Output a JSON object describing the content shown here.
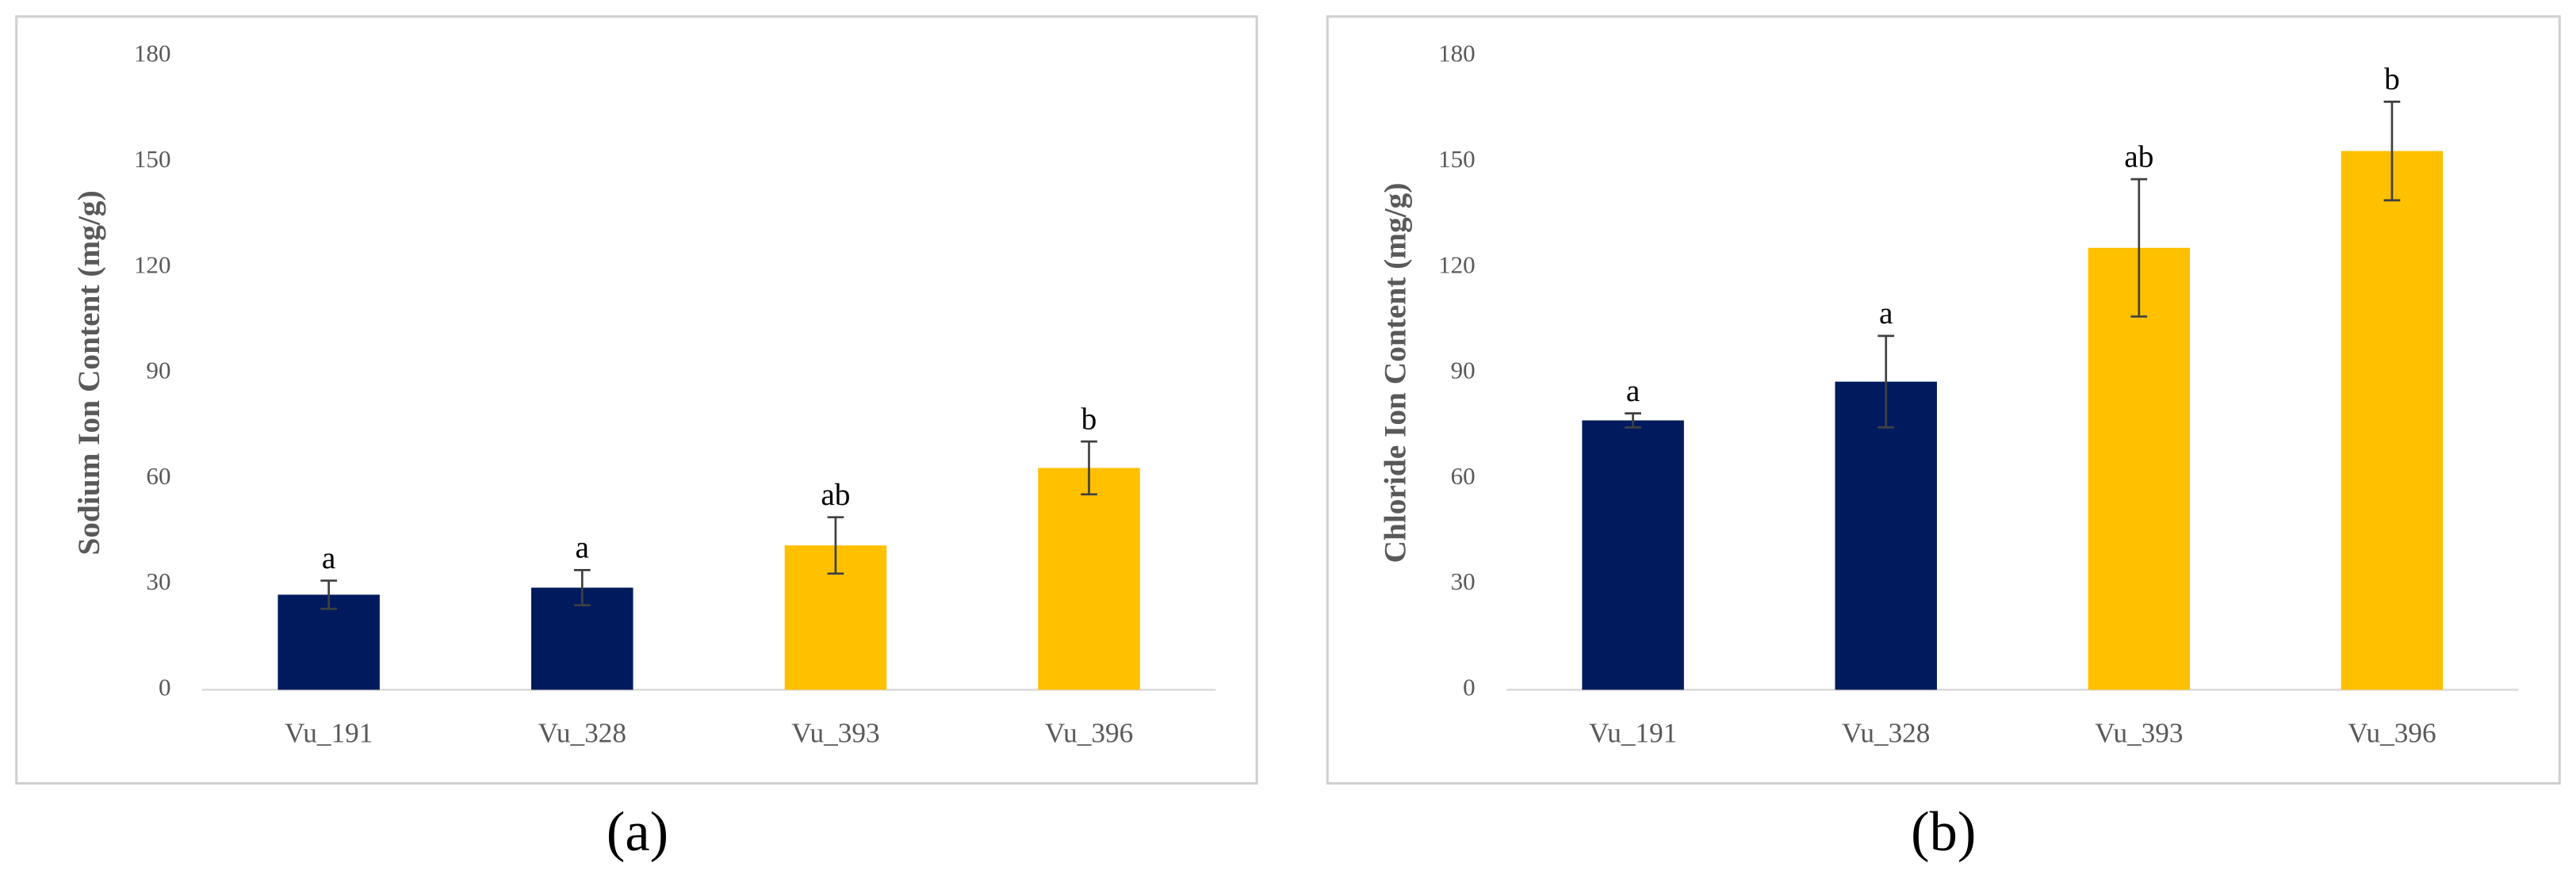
{
  "chart_data": [
    {
      "type": "bar",
      "y_label": "Sodium Ion Content (mg/g)",
      "panel_label": "(a)",
      "categories": [
        "Vu_191",
        "Vu_328",
        "Vu_393",
        "Vu_396"
      ],
      "values": [
        27,
        29,
        41,
        63
      ],
      "errors": [
        4,
        5,
        8,
        7.5
      ],
      "colors": [
        "#001a5e",
        "#001a5e",
        "#ffc000",
        "#ffc000"
      ],
      "annotations": [
        "a",
        "a",
        "ab",
        "b"
      ],
      "ylim": [
        0,
        180
      ],
      "yticks": [
        0,
        30,
        60,
        90,
        120,
        150,
        180
      ]
    },
    {
      "type": "bar",
      "y_label": "Chloride Ion Content (mg/g)",
      "panel_label": "(b)",
      "categories": [
        "Vu_191",
        "Vu_328",
        "Vu_393",
        "Vu_396"
      ],
      "values": [
        76.5,
        87.5,
        125.5,
        153
      ],
      "errors": [
        2,
        13,
        19.5,
        14
      ],
      "colors": [
        "#001a5e",
        "#001a5e",
        "#ffc000",
        "#ffc000"
      ],
      "annotations": [
        "a",
        "a",
        "ab",
        "b"
      ],
      "ylim": [
        0,
        180
      ],
      "yticks": [
        0,
        30,
        60,
        90,
        120,
        150,
        180
      ]
    }
  ]
}
